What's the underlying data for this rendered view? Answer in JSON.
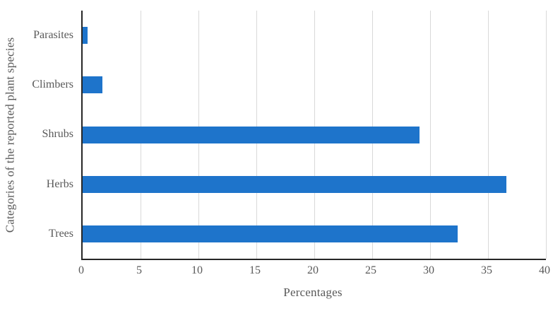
{
  "chart_data": {
    "type": "bar",
    "orientation": "horizontal",
    "title": "",
    "xlabel": "Percentages",
    "ylabel": "Categories of the reported plant species",
    "categories": [
      "Parasites",
      "Climbers",
      "Shrubs",
      "Herbs",
      "Trees"
    ],
    "values": [
      0.4,
      1.7,
      29.1,
      36.6,
      32.4
    ],
    "xlim": [
      0,
      40
    ],
    "xticks": [
      0,
      5,
      10,
      15,
      20,
      25,
      30,
      35,
      40
    ],
    "grid": "vertical",
    "legend": "none",
    "colors": {
      "bar": "#1e74cb",
      "gridline": "#d9d9d9",
      "axis": "#262626",
      "text": "#595959",
      "background": "#ffffff"
    }
  }
}
